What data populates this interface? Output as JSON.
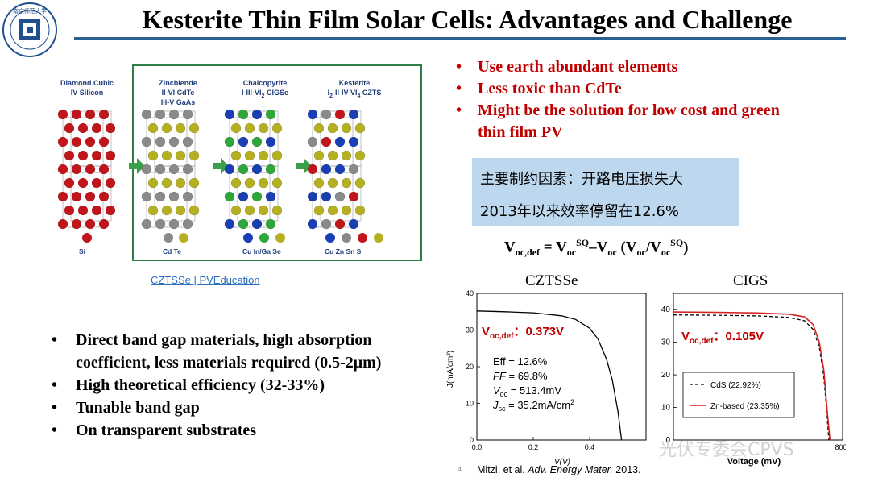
{
  "slide": {
    "title": "Kesterite Thin Film Solar Cells: Advantages and Challenge",
    "logo_text": "南京师范大学"
  },
  "crystal_figure": {
    "structures": [
      {
        "name": "Diamond Cubic",
        "formula": "IV  Silicon",
        "formula2": "",
        "legend": "Si"
      },
      {
        "name": "Zincblende",
        "formula": "II-VI  CdTe",
        "formula2": "III-V  GaAs",
        "legend": "Cd    Te"
      },
      {
        "name": "Chalcopyrite",
        "formula": "I-III-VI",
        "formula_sub": "2",
        "formula_tail": "  CIGSe",
        "formula2": "",
        "legend": "Cu In/Ga Se"
      },
      {
        "name": "Kesterite",
        "formula": "I",
        "formula_sub": "2",
        "formula_mid": "-II-IV-VI",
        "formula_sub2": "4",
        "formula_tail": " CZTS",
        "formula2": "",
        "legend": "Cu   Zn   Sn    S"
      }
    ],
    "colors": {
      "red": "#c0161b",
      "grey": "#8a8a8a",
      "olive": "#b5b021",
      "blue": "#1a3fb5",
      "green": "#2fa63a",
      "frame": "#2f7d45"
    },
    "link_text": "CZTSSe | PVEducation"
  },
  "advantages": [
    "Use earth abundant elements",
    "Less toxic than CdTe",
    "Might be the solution for low cost and green thin film PV"
  ],
  "challenge_box": {
    "line1": "主要制约因素：开路电压损失大",
    "line2": "2013年以来效率停留在12.6%"
  },
  "equation": {
    "lhs": "V",
    "lhs_sub": "oc,def",
    "eq": " = V",
    "t1_sub": "oc",
    "t1_sup": "SQ",
    "minus": "–V",
    "t2_sub": "oc",
    "paren_open": "  (V",
    "t3_sub": "oc",
    "slash": "/V",
    "t4_sub": "oc",
    "t4_sup": "SQ",
    "paren_close": ")"
  },
  "features": [
    "Direct band gap materials, high absorption coefficient, less materials required (0.5-2μm)",
    "High theoretical efficiency (32-33%)",
    "Tunable band gap",
    "On transparent substrates"
  ],
  "chart_data": [
    {
      "type": "line",
      "title": "CZTSSe",
      "xlabel": "V(V)",
      "ylabel": "J(mA/cm²)",
      "xlim": [
        0.0,
        0.6
      ],
      "ylim": [
        0,
        40
      ],
      "xticks": [
        "0.0",
        "0.2",
        "0.4"
      ],
      "yticks": [
        "0",
        "10",
        "20",
        "30",
        "40"
      ],
      "series": [
        {
          "x": [
            0.0,
            0.1,
            0.2,
            0.3,
            0.35,
            0.4,
            0.43,
            0.46,
            0.48,
            0.5,
            0.513
          ],
          "y": [
            35.2,
            35.0,
            34.7,
            33.9,
            32.9,
            30.5,
            27.5,
            22.0,
            16.5,
            8.0,
            0.0
          ]
        }
      ],
      "annotation_voc": "V",
      "annotation_voc_sub": "oc,def",
      "annotation_voc_val": "：0.373V",
      "stats": [
        {
          "label": "Eff = 12.6%"
        },
        {
          "label_i": "FF",
          "label": " = 69.8%"
        },
        {
          "label_i": "V",
          "label_sub": "oc",
          "label": " = 513.4mV"
        },
        {
          "label_i": "J",
          "label_sub": "sc",
          "label": " = 35.2mA/cm",
          "label_sup": "2"
        }
      ]
    },
    {
      "type": "line",
      "title": "CIGS",
      "xlabel": "Voltage (mV)",
      "ylabel": "",
      "xlim": [
        0,
        800
      ],
      "ylim": [
        0,
        45
      ],
      "xticks": [
        "800"
      ],
      "yticks": [
        "0",
        "10",
        "20",
        "30",
        "40"
      ],
      "series": [
        {
          "name": "CdS (22.92%)",
          "style": "dashed",
          "color": "#000000",
          "x": [
            0,
            200,
            400,
            550,
            620,
            660,
            690,
            710,
            725,
            735
          ],
          "y": [
            38.4,
            38.3,
            38.1,
            37.6,
            36.6,
            34.0,
            28.5,
            20.0,
            9.0,
            0
          ]
        },
        {
          "name": "Zn-based (23.35%)",
          "style": "solid",
          "color": "#d62020",
          "x": [
            0,
            200,
            400,
            550,
            620,
            660,
            690,
            712,
            727,
            740
          ],
          "y": [
            39.3,
            39.2,
            39.0,
            38.6,
            37.8,
            35.5,
            30.0,
            21.0,
            9.0,
            0
          ]
        }
      ],
      "annotation_voc": "V",
      "annotation_voc_sub": "oc,def",
      "annotation_voc_val": "：0.105V"
    }
  ],
  "citation_prefix": "Mitzi, et al. ",
  "citation_journal": "Adv. Energy Mater.",
  "citation_suffix": " 2013.",
  "page_number": "4",
  "watermark": "光伏专委会CPVS"
}
